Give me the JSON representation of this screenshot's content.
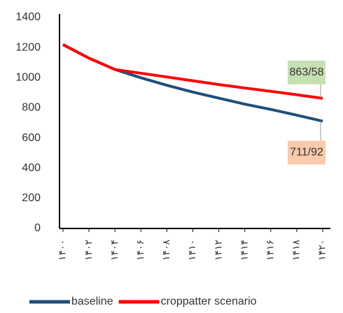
{
  "chart_data": {
    "type": "line",
    "categories": [
      "۱۴۰۰",
      "۱۴۰۲",
      "۱۴۰۴",
      "۱۴۰۶",
      "۱۴۰۸",
      "۱۴۱۰",
      "۱۴۱۲",
      "۱۴۱۴",
      "۱۴۱۶",
      "۱۴۱۸",
      "۱۴۲۰"
    ],
    "series": [
      {
        "name": "baseline",
        "color": "#1f4e79",
        "values": [
          1220,
          1130,
          1055,
          1000,
          950,
          905,
          865,
          825,
          790,
          752,
          711.92
        ],
        "value_labels": [
          null,
          null,
          null,
          null,
          null,
          null,
          null,
          null,
          null,
          null,
          "711/92"
        ],
        "label_color": "#f8cbad"
      },
      {
        "name": "croppatter scenario",
        "color": "#ff0000",
        "values": [
          1220,
          1130,
          1055,
          1030,
          1005,
          980,
          955,
          932,
          910,
          887,
          863.58
        ],
        "value_labels": [
          null,
          null,
          null,
          null,
          null,
          null,
          null,
          null,
          null,
          null,
          "863/58"
        ],
        "label_color": "#c6e0b4"
      }
    ],
    "ylim": [
      0,
      1400
    ],
    "yticks": [
      0,
      200,
      400,
      600,
      800,
      1000,
      1200,
      1400
    ],
    "grid": false
  }
}
